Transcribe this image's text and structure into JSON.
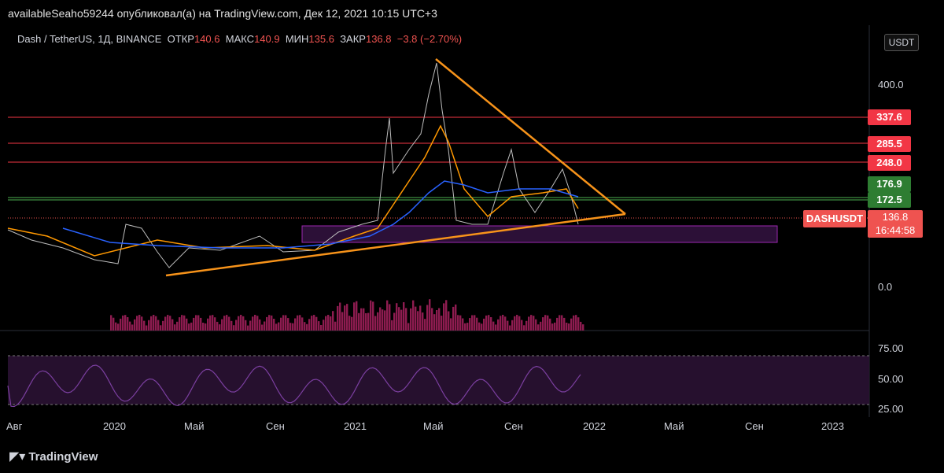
{
  "header": {
    "caption": "availableSeaho59244 опубликовал(а) на TradingView.com, Дек 12, 2021 10:15 UTC+3"
  },
  "legend": {
    "pair": "Dash / TetherUS, 1Д, BINANCE",
    "open_label": "ОТКР",
    "open": "140.6",
    "high_label": "МАКС",
    "high": "140.9",
    "low_label": "МИН",
    "low": "135.6",
    "close_label": "ЗАКР",
    "close": "136.8",
    "change": "−3.8 (−2.70%)"
  },
  "price_axis": {
    "currency": "USDT",
    "ticks": [
      "400.0",
      "0.0"
    ],
    "levels": [
      {
        "value": "337.6",
        "color": "#f23645"
      },
      {
        "value": "285.5",
        "color": "#f23645"
      },
      {
        "value": "248.0",
        "color": "#f23645"
      },
      {
        "value": "176.9",
        "color": "#2e7d32"
      },
      {
        "value": "172.5",
        "color": "#2e7d32"
      }
    ],
    "symbol": "DASHUSDT",
    "last_price": "136.8",
    "countdown": "16:44:58"
  },
  "rsi_axis": {
    "ticks": [
      "75.00",
      "50.00",
      "25.00"
    ]
  },
  "time_axis": {
    "labels": [
      "Авг",
      "2020",
      "Май",
      "Сен",
      "2021",
      "Май",
      "Сен",
      "2022",
      "Май",
      "Сен",
      "2023"
    ]
  },
  "colors": {
    "horizontal_red": "#f23645",
    "horizontal_green": "#4caf50",
    "trendline": "#f7931a",
    "ema": "#ff9800",
    "sma": "#2962ff",
    "rsi_band": "#2a1233",
    "rsi_line": "#7b3fa0",
    "volume": "#8e1c50",
    "zone": "#4a1a5c"
  },
  "footer": {
    "brand": "TradingView",
    "logo_icon": "tradingview-logo-icon"
  }
}
